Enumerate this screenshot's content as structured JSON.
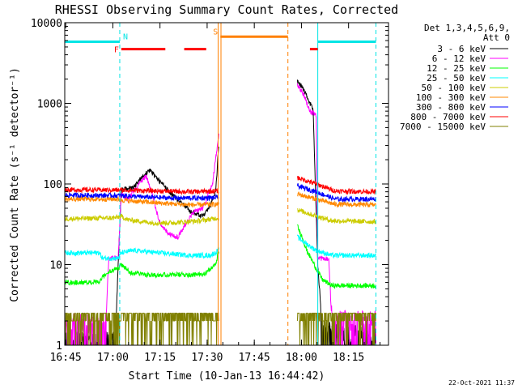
{
  "chart_data": {
    "type": "line",
    "title": "RHESSI Observing Summary Count Rates, Corrected",
    "xlabel": "Start Time (10-Jan-13 16:44:42)",
    "ylabel": "Corrected Count Rate (s⁻¹ detector⁻¹)",
    "y_scale": "log",
    "ylim": [
      1,
      10000
    ],
    "xlim_minutes": [
      0,
      103
    ],
    "x_tick_labels": [
      "16:45",
      "17:00",
      "17:15",
      "17:30",
      "17:45",
      "18:00",
      "18:15"
    ],
    "x_tick_minutes": [
      0.3,
      15.3,
      30.3,
      45.3,
      60.3,
      75.3,
      90.3
    ],
    "y_tick_labels": [
      "1",
      "10",
      "100",
      "1000",
      "10000"
    ],
    "y_ticks": [
      1,
      10,
      100,
      1000,
      10000
    ],
    "legend_title": [
      "Det 1,3,4,5,6,9,",
      "Att 0"
    ],
    "legend_position": "right",
    "footer": "22-Oct-2021 11:37",
    "data_gap_minutes": [
      49,
      74
    ],
    "flags": [
      {
        "letter": "F",
        "color": "#ff0000",
        "level": 4700,
        "segments": [
          [
            18,
            32
          ],
          [
            38,
            45
          ],
          [
            78,
            80.5
          ]
        ]
      },
      {
        "letter": "N",
        "color": "#00e5e5",
        "level": 5800,
        "segments": [
          [
            0,
            17.5
          ],
          [
            80.5,
            99
          ]
        ]
      },
      {
        "letter": "S",
        "color": "#ff8000",
        "level": 6700,
        "segments": [
          [
            49.5,
            71
          ]
        ]
      }
    ],
    "vlines": [
      {
        "color": "#00e5e5",
        "style": "solid",
        "minutes": [
          0,
          80.5
        ]
      },
      {
        "color": "#00e5e5",
        "style": "dashed",
        "minutes": [
          17.5,
          99
        ]
      },
      {
        "color": "#ff8000",
        "style": "solid",
        "minutes": [
          48.8,
          49.7
        ]
      },
      {
        "color": "#ff8000",
        "style": "dashed",
        "minutes": [
          71
        ]
      }
    ],
    "series": [
      {
        "name": "3 - 6 keV",
        "color": "#000000",
        "pre": [
          [
            0,
            1
          ],
          [
            16,
            1
          ],
          [
            17,
            10
          ],
          [
            18,
            85
          ],
          [
            22,
            90
          ],
          [
            24,
            115
          ],
          [
            27,
            150
          ],
          [
            30,
            110
          ],
          [
            34,
            75
          ],
          [
            38,
            55
          ],
          [
            40,
            45
          ],
          [
            44,
            40
          ],
          [
            46,
            50
          ],
          [
            48,
            80
          ],
          [
            49,
            300
          ]
        ],
        "post": [
          [
            74,
            1900
          ],
          [
            76,
            1500
          ],
          [
            78,
            1000
          ],
          [
            79,
            850
          ],
          [
            80.5,
            10
          ],
          [
            82,
            1.5
          ],
          [
            90,
            1.2
          ],
          [
            99,
            1.2
          ]
        ]
      },
      {
        "name": "6 - 12 keV",
        "color": "#ff00ff",
        "pre": [
          [
            0,
            1.7
          ],
          [
            13,
            1.7
          ],
          [
            14,
            12
          ],
          [
            17,
            12
          ],
          [
            18,
            75
          ],
          [
            20,
            65
          ],
          [
            24,
            105
          ],
          [
            26,
            125
          ],
          [
            28,
            70
          ],
          [
            30,
            35
          ],
          [
            33,
            24
          ],
          [
            36,
            22
          ],
          [
            38,
            30
          ],
          [
            41,
            45
          ],
          [
            44,
            50
          ],
          [
            47,
            100
          ],
          [
            49,
            400
          ]
        ],
        "post": [
          [
            74,
            1700
          ],
          [
            76,
            1300
          ],
          [
            78,
            800
          ],
          [
            80,
            700
          ],
          [
            80.5,
            12
          ],
          [
            84,
            12
          ],
          [
            85,
            1.8
          ],
          [
            99,
            1.8
          ]
        ]
      },
      {
        "name": "12 - 25 keV",
        "color": "#00ff00",
        "pre": [
          [
            0,
            6
          ],
          [
            11,
            6
          ],
          [
            12,
            7
          ],
          [
            14,
            8
          ],
          [
            17,
            9
          ],
          [
            18,
            10
          ],
          [
            21,
            8
          ],
          [
            26,
            7.5
          ],
          [
            35,
            7.5
          ],
          [
            43,
            7.5
          ],
          [
            45,
            8
          ],
          [
            48,
            10
          ],
          [
            49,
            15
          ]
        ],
        "post": [
          [
            74,
            30
          ],
          [
            75.5,
            22
          ],
          [
            77,
            15
          ],
          [
            80,
            9
          ],
          [
            82,
            6.5
          ],
          [
            85,
            5.5
          ],
          [
            99,
            5.5
          ]
        ]
      },
      {
        "name": "25 - 50 keV",
        "color": "#00ffff",
        "pre": [
          [
            0,
            14
          ],
          [
            11,
            14
          ],
          [
            12,
            12
          ],
          [
            17,
            12
          ],
          [
            18,
            14
          ],
          [
            22,
            15
          ],
          [
            30,
            14
          ],
          [
            40,
            13
          ],
          [
            46,
            13
          ],
          [
            48,
            14
          ],
          [
            49,
            16
          ]
        ],
        "post": [
          [
            74,
            22
          ],
          [
            77,
            18
          ],
          [
            80,
            15
          ],
          [
            85,
            13
          ],
          [
            99,
            13
          ]
        ]
      },
      {
        "name": "50 - 100 keV",
        "color": "#cccc00",
        "pre": [
          [
            0,
            37
          ],
          [
            16,
            38
          ],
          [
            18,
            40
          ],
          [
            20,
            36
          ],
          [
            28,
            33
          ],
          [
            34,
            33
          ],
          [
            43,
            35
          ],
          [
            49,
            38
          ]
        ],
        "post": [
          [
            74,
            48
          ],
          [
            80,
            40
          ],
          [
            85,
            35
          ],
          [
            99,
            34
          ]
        ]
      },
      {
        "name": "100 - 300 keV",
        "color": "#ff8800",
        "pre": [
          [
            0,
            65
          ],
          [
            16,
            65
          ],
          [
            20,
            62
          ],
          [
            30,
            58
          ],
          [
            40,
            55
          ],
          [
            49,
            56
          ]
        ],
        "post": [
          [
            74,
            75
          ],
          [
            80,
            65
          ],
          [
            86,
            56
          ],
          [
            99,
            55
          ]
        ]
      },
      {
        "name": "300 - 800 keV",
        "color": "#0000ff",
        "pre": [
          [
            0,
            73
          ],
          [
            18,
            72
          ],
          [
            25,
            69
          ],
          [
            35,
            67
          ],
          [
            45,
            67
          ],
          [
            49,
            68
          ]
        ],
        "post": [
          [
            74,
            95
          ],
          [
            80,
            80
          ],
          [
            86,
            65
          ],
          [
            99,
            65
          ]
        ]
      },
      {
        "name": "800 - 7000 keV",
        "color": "#ff0000",
        "pre": [
          [
            0,
            85
          ],
          [
            18,
            84
          ],
          [
            30,
            82
          ],
          [
            40,
            80
          ],
          [
            49,
            82
          ]
        ],
        "post": [
          [
            74,
            120
          ],
          [
            80,
            100
          ],
          [
            86,
            82
          ],
          [
            99,
            80
          ]
        ]
      },
      {
        "name": "7000 - 15000 keV",
        "color": "#808000",
        "pre": [
          [
            0,
            2.5
          ],
          [
            49,
            2.5
          ]
        ],
        "post": [
          [
            74,
            2.5
          ],
          [
            99,
            2.5
          ]
        ]
      }
    ]
  }
}
